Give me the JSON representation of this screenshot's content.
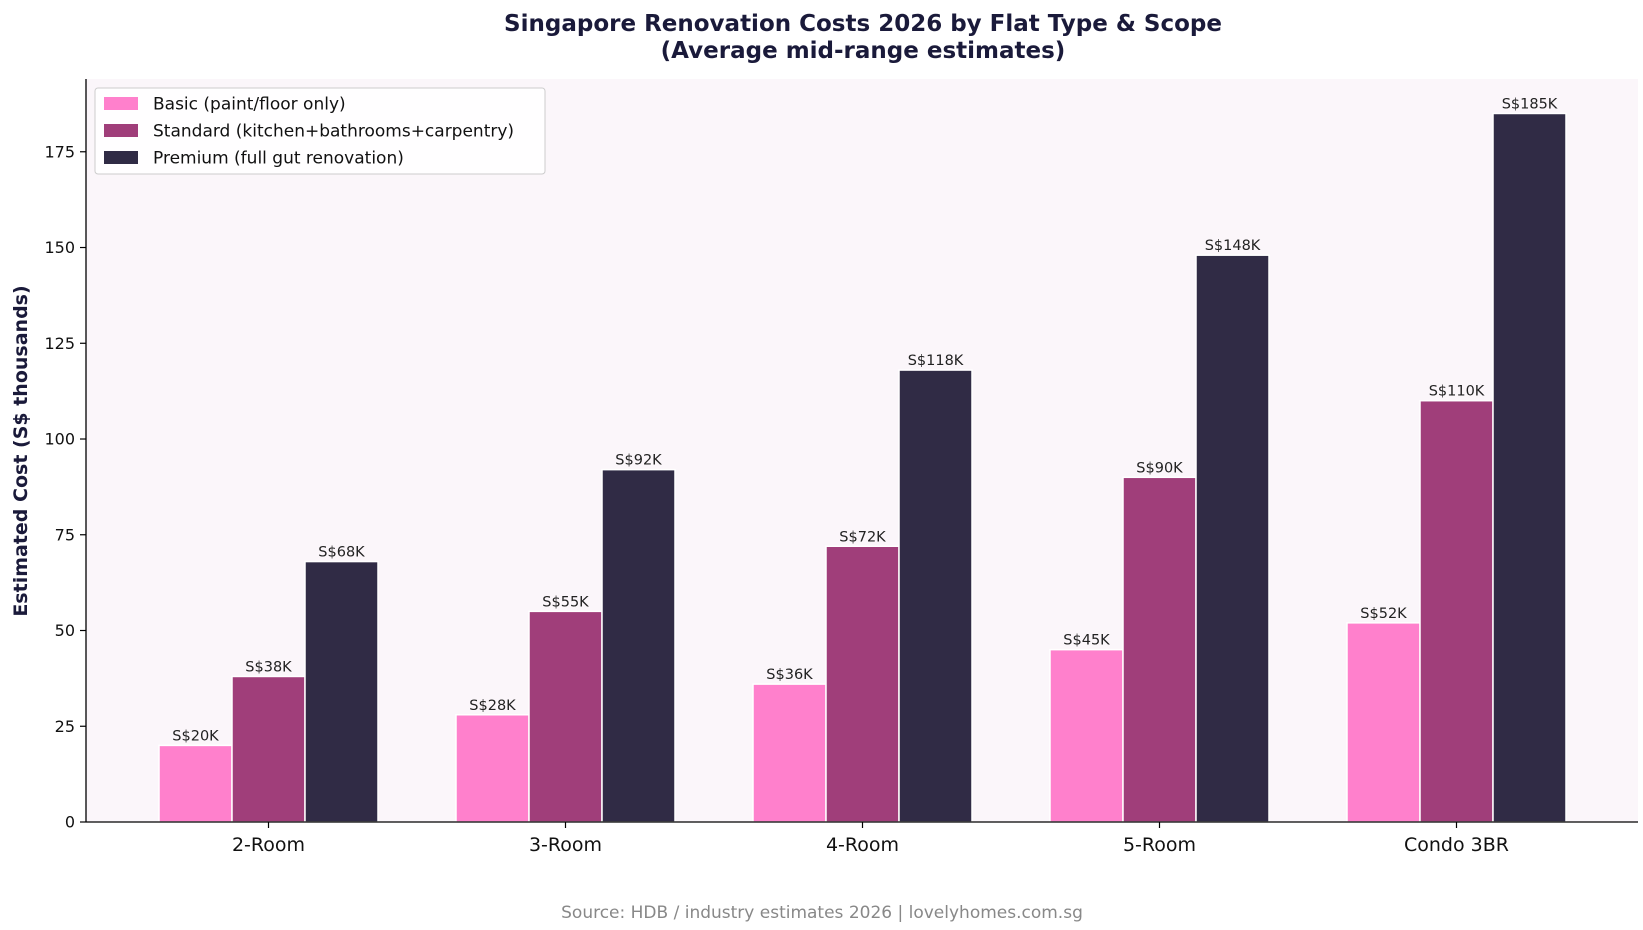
{
  "chart_data": {
    "type": "bar",
    "title": "Singapore Renovation Costs 2026 by Flat Type & Scope",
    "subtitle": "(Average mid-range estimates)",
    "xlabel": "",
    "ylabel": "Estimated Cost (S$ thousands)",
    "ylim": [
      0,
      194
    ],
    "yticks": [
      0,
      25,
      50,
      75,
      100,
      125,
      150,
      175
    ],
    "categories": [
      "2-Room",
      "3-Room",
      "4-Room",
      "5-Room",
      "Condo 3BR"
    ],
    "series": [
      {
        "name": "Basic (paint/floor only)",
        "color": "#ff80cc",
        "values": [
          20,
          28,
          36,
          45,
          52
        ],
        "labels": [
          "S$20K",
          "S$28K",
          "S$36K",
          "S$45K",
          "S$52K"
        ]
      },
      {
        "name": "Standard (kitchen+bathrooms+carpentry)",
        "color": "#a03e7a",
        "values": [
          38,
          55,
          72,
          90,
          110
        ],
        "labels": [
          "S$38K",
          "S$55K",
          "S$72K",
          "S$90K",
          "S$110K"
        ]
      },
      {
        "name": "Premium (full gut renovation)",
        "color": "#302b45",
        "values": [
          68,
          92,
          118,
          148,
          185
        ],
        "labels": [
          "S$68K",
          "S$92K",
          "S$118K",
          "S$148K",
          "S$185K"
        ]
      }
    ],
    "grid": false,
    "legend_position": "top-left",
    "plot_background": "#fbf6fa"
  },
  "source": "Source: HDB / industry estimates 2026 | lovelyhomes.com.sg"
}
